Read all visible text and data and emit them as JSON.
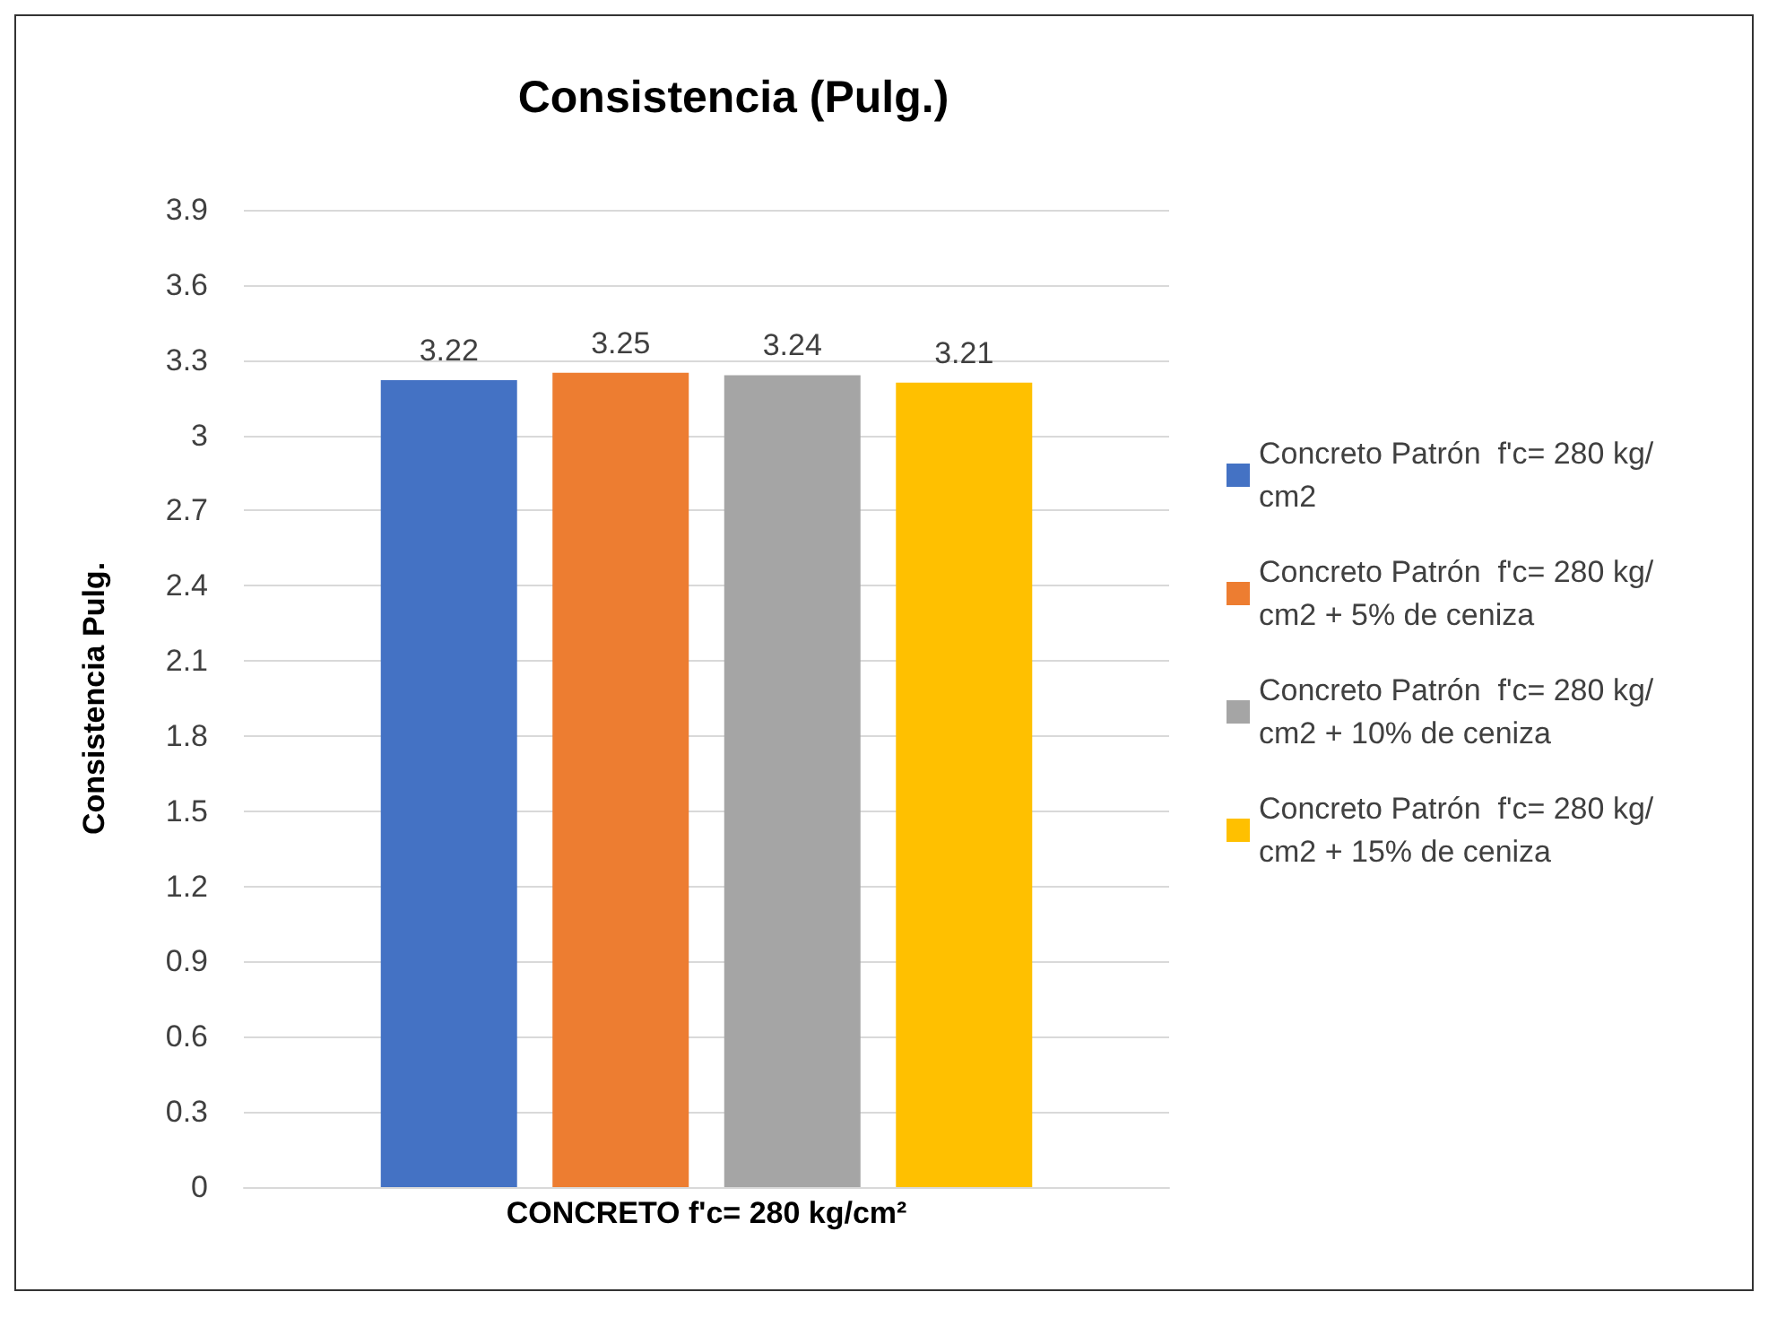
{
  "chart_data": {
    "type": "bar",
    "title": "Consistencia (Pulg.)",
    "ylabel": "Consistencia Pulg.",
    "categories": [
      "CONCRETO f'c= 280 kg/cm²"
    ],
    "series": [
      {
        "name": "Concreto Patrón  f'c= 280 kg/cm2",
        "color": "#4472c4",
        "values": [
          3.22
        ]
      },
      {
        "name": "Concreto Patrón  f'c= 280 kg/cm2 + 5% de ceniza",
        "color": "#ed7d31",
        "values": [
          3.25
        ]
      },
      {
        "name": "Concreto Patrón  f'c= 280 kg/cm2 + 10% de ceniza",
        "color": "#a5a5a5",
        "values": [
          3.24
        ]
      },
      {
        "name": "Concreto Patrón  f'c= 280 kg/cm2 + 15% de ceniza",
        "color": "#ffc000",
        "values": [
          3.21
        ]
      }
    ],
    "ylim": [
      0,
      3.9
    ],
    "yticks": [
      0,
      0.3,
      0.6,
      0.9,
      1.2,
      1.5,
      1.8,
      2.1,
      2.4,
      2.7,
      3,
      3.3,
      3.6,
      3.9
    ],
    "grid": "y",
    "legend": "right",
    "data_labels": true
  }
}
